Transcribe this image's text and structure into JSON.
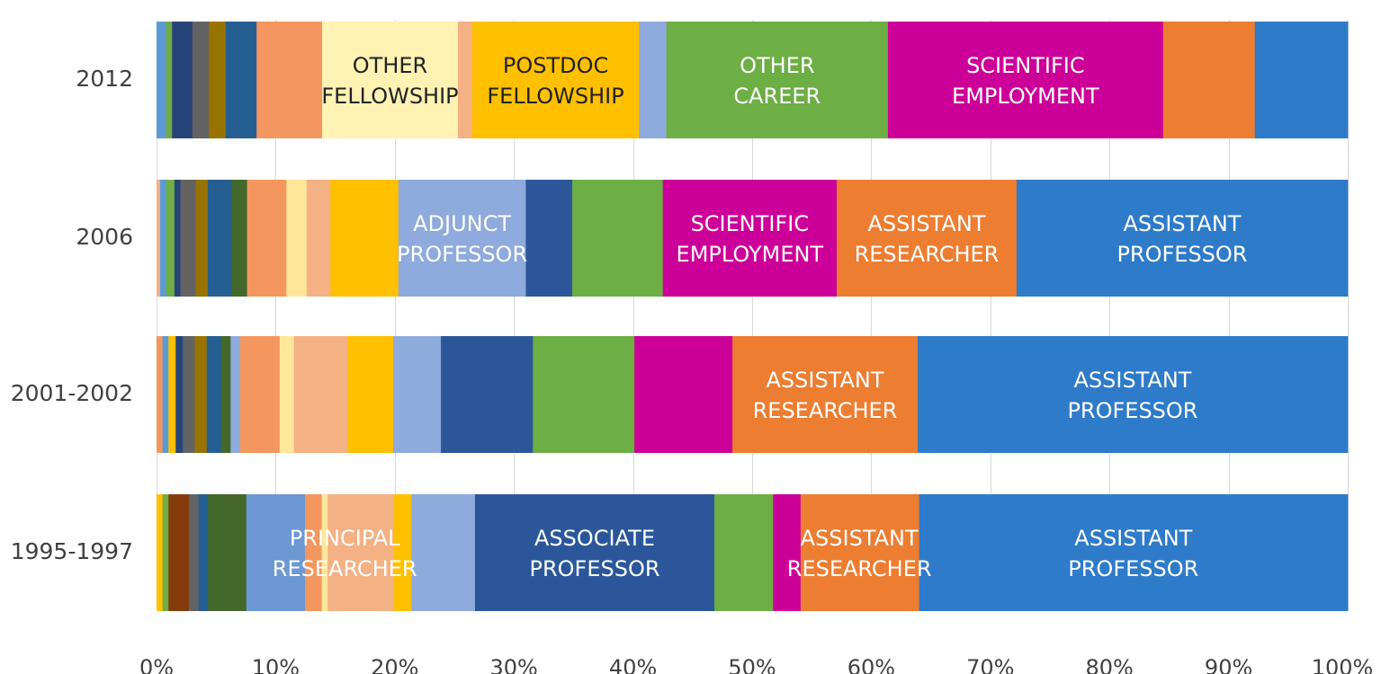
{
  "chart_data": {
    "type": "bar",
    "orientation": "horizontal",
    "stacked": "100%",
    "title": "",
    "xlabel": "",
    "ylabel": "",
    "xlim": [
      0,
      100
    ],
    "grid": true,
    "legend": "none",
    "x_ticks": [
      "0%",
      "10%",
      "20%",
      "30%",
      "40%",
      "50%",
      "60%",
      "70%",
      "80%",
      "90%",
      "100%"
    ],
    "categories": [
      "2012",
      "2006",
      "2001-2002",
      "1995-1997"
    ],
    "bars": [
      {
        "category": "2012",
        "segments": [
          {
            "value": 0.8,
            "color": "#5B9BD5"
          },
          {
            "value": 0.5,
            "color": "#70AD47"
          },
          {
            "value": 1.7,
            "color": "#264478"
          },
          {
            "value": 1.4,
            "color": "#636363"
          },
          {
            "value": 1.4,
            "color": "#997300"
          },
          {
            "value": 2.6,
            "color": "#255E91"
          },
          {
            "value": 5.5,
            "color": "#F4975F"
          },
          {
            "value": 11.4,
            "color": "#FFF2B3",
            "label": [
              "OTHER",
              "FELLOWSHIP"
            ],
            "dark": true
          },
          {
            "value": 1.2,
            "color": "#F4B183"
          },
          {
            "value": 14.0,
            "color": "#FFC000",
            "label": [
              "POSTDOC",
              "FELLOWSHIP"
            ],
            "dark": true
          },
          {
            "value": 2.3,
            "color": "#8FAADC"
          },
          {
            "value": 18.6,
            "color": "#6DAE45",
            "label": [
              "OTHER",
              "CAREER"
            ]
          },
          {
            "value": 23.1,
            "color": "#CC0099",
            "label": [
              "SCIENTIFIC",
              "EMPLOYMENT"
            ]
          },
          {
            "value": 7.7,
            "color": "#ED7D31"
          },
          {
            "value": 7.8,
            "color": "#2E7BC9"
          }
        ]
      },
      {
        "category": "2006",
        "segments": [
          {
            "value": 0.3,
            "color": "#F4B183"
          },
          {
            "value": 0.5,
            "color": "#5B9BD5"
          },
          {
            "value": 0.7,
            "color": "#70AD47"
          },
          {
            "value": 0.5,
            "color": "#264478"
          },
          {
            "value": 1.3,
            "color": "#636363"
          },
          {
            "value": 1.0,
            "color": "#997300"
          },
          {
            "value": 2.0,
            "color": "#255E91"
          },
          {
            "value": 1.3,
            "color": "#43682B"
          },
          {
            "value": 3.3,
            "color": "#F4975F"
          },
          {
            "value": 1.7,
            "color": "#FFE699"
          },
          {
            "value": 2.0,
            "color": "#F4B183"
          },
          {
            "value": 5.7,
            "color": "#FFC000"
          },
          {
            "value": 10.7,
            "color": "#8FAADC",
            "label": [
              "ADJUNCT",
              "PROFESSOR"
            ]
          },
          {
            "value": 3.9,
            "color": "#2B579A"
          },
          {
            "value": 7.6,
            "color": "#6DAE45"
          },
          {
            "value": 14.6,
            "color": "#CC0099",
            "label": [
              "SCIENTIFIC",
              "EMPLOYMENT"
            ]
          },
          {
            "value": 15.1,
            "color": "#ED7D31",
            "label": [
              "ASSISTANT",
              "RESEARCHER"
            ]
          },
          {
            "value": 27.8,
            "color": "#2E7BC9",
            "label": [
              "ASSISTANT",
              "PROFESSOR"
            ]
          }
        ]
      },
      {
        "category": "2001-2002",
        "segments": [
          {
            "value": 0.5,
            "color": "#F4975F"
          },
          {
            "value": 0.5,
            "color": "#5B9BD5"
          },
          {
            "value": 0.6,
            "color": "#FFC000"
          },
          {
            "value": 0.6,
            "color": "#264478"
          },
          {
            "value": 1.0,
            "color": "#636363"
          },
          {
            "value": 1.0,
            "color": "#997300"
          },
          {
            "value": 1.2,
            "color": "#255E91"
          },
          {
            "value": 0.8,
            "color": "#43682B"
          },
          {
            "value": 0.8,
            "color": "#8FAADC"
          },
          {
            "value": 3.3,
            "color": "#F4975F"
          },
          {
            "value": 1.2,
            "color": "#FFE699"
          },
          {
            "value": 4.5,
            "color": "#F4B183"
          },
          {
            "value": 3.8,
            "color": "#FFC000"
          },
          {
            "value": 4.0,
            "color": "#8FAADC"
          },
          {
            "value": 7.7,
            "color": "#2B579A"
          },
          {
            "value": 8.5,
            "color": "#6DAE45"
          },
          {
            "value": 8.2,
            "color": "#CC0099"
          },
          {
            "value": 15.5,
            "color": "#ED7D31",
            "label": [
              "ASSISTANT",
              "RESEARCHER"
            ]
          },
          {
            "value": 36.0,
            "color": "#2E7BC9",
            "label": [
              "ASSISTANT",
              "PROFESSOR"
            ]
          }
        ]
      },
      {
        "category": "1995-1997",
        "segments": [
          {
            "value": 0.5,
            "color": "#FFC000"
          },
          {
            "value": 0.5,
            "color": "#70AD47"
          },
          {
            "value": 1.7,
            "color": "#843C0C"
          },
          {
            "value": 0.8,
            "color": "#636363"
          },
          {
            "value": 0.8,
            "color": "#255E91"
          },
          {
            "value": 3.2,
            "color": "#43682B"
          },
          {
            "value": 4.9,
            "color": "#6C98D4",
            "label": [
              "PRINCIPAL",
              "RESEARCHER"
            ],
            "label_at": 15.8
          },
          {
            "value": 1.4,
            "color": "#F4975F"
          },
          {
            "value": 0.5,
            "color": "#FFE699"
          },
          {
            "value": 5.5,
            "color": "#F4B183"
          },
          {
            "value": 1.5,
            "color": "#FFC000"
          },
          {
            "value": 5.3,
            "color": "#8FAADC"
          },
          {
            "value": 20.0,
            "color": "#2B579A",
            "label": [
              "ASSOCIATE",
              "PROFESSOR"
            ]
          },
          {
            "value": 4.9,
            "color": "#6DAE45"
          },
          {
            "value": 2.3,
            "color": "#CC0099"
          },
          {
            "value": 9.9,
            "color": "#ED7D31",
            "label": [
              "ASSISTANT",
              "RESEARCHER"
            ],
            "label_at": 59.0
          },
          {
            "value": 35.8,
            "color": "#2E7BC9",
            "label": [
              "ASSISTANT",
              "PROFESSOR"
            ]
          }
        ]
      }
    ]
  }
}
